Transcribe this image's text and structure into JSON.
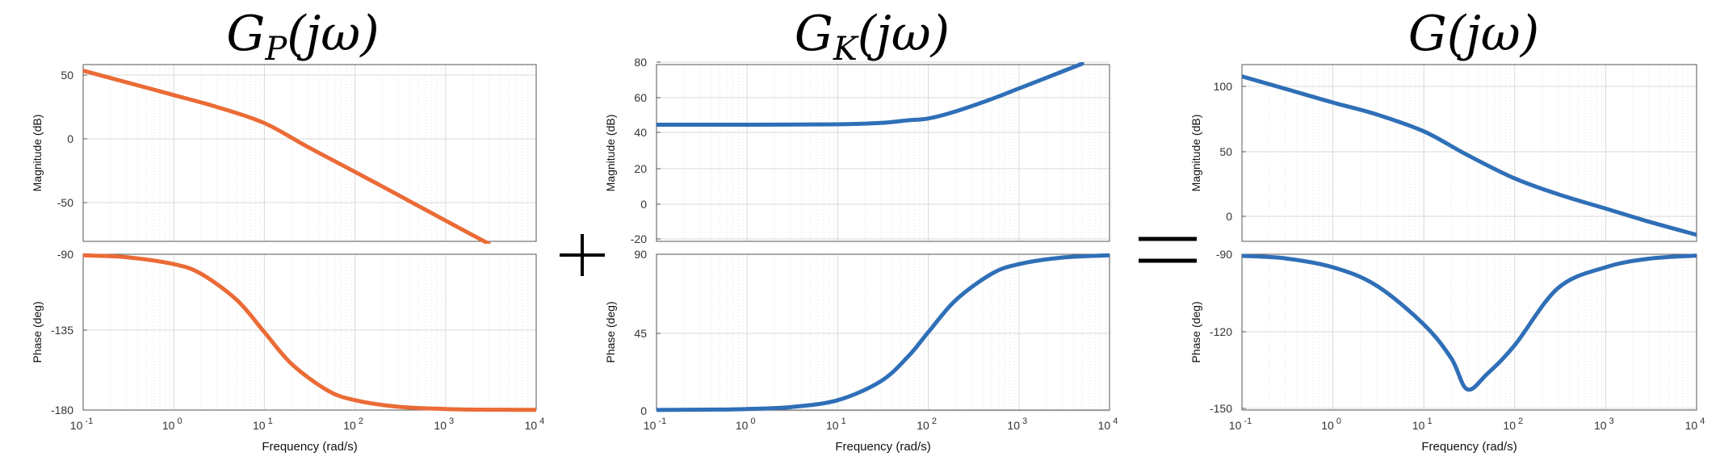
{
  "operators": {
    "plus": "+",
    "equals": "="
  },
  "colors": {
    "plant": "#EB6B36",
    "controller": "#2F6FB7",
    "open_loop": "#2F6FB7"
  },
  "chart_data": [
    {
      "type": "line",
      "title": {
        "base": "G",
        "sub": "P",
        "arg": "(jω)"
      },
      "xlabel": "Frequency  (rad/s)",
      "xscale": "log",
      "xlim": [
        0.1,
        10000
      ],
      "x_ticks": [
        {
          "base": "10",
          "exp": "-1",
          "value": 0.1
        },
        {
          "base": "10",
          "exp": "0",
          "value": 1
        },
        {
          "base": "10",
          "exp": "1",
          "value": 10
        },
        {
          "base": "10",
          "exp": "2",
          "value": 100
        },
        {
          "base": "10",
          "exp": "3",
          "value": 1000
        },
        {
          "base": "10",
          "exp": "4",
          "value": 10000
        }
      ],
      "magnitude": {
        "ylabel": "Magnitude (dB)",
        "ylim": [
          -80,
          65
        ],
        "yticks": [
          "50",
          "0",
          "-50"
        ],
        "series": [
          {
            "x": [
              0.1,
              0.3,
              1,
              3,
              10,
              30,
              100,
              300,
              1000,
              3000
            ],
            "values": [
              60,
              50.5,
              40,
              30.2,
              17,
              -2.5,
              -23,
              -42,
              -63,
              -82
            ]
          }
        ]
      },
      "phase": {
        "ylabel": "Phase (deg)",
        "ylim": [
          -180,
          -90
        ],
        "yticks": [
          "-90",
          "-135",
          "-180"
        ],
        "series": [
          {
            "x": [
              0.1,
              0.3,
              1,
              2,
              5,
              10,
              20,
              50,
              100,
              300,
              1000,
              3000,
              10000
            ],
            "values": [
              -90.6,
              -91.7,
              -95.7,
              -101.3,
              -116.6,
              -135,
              -153.4,
              -168.7,
              -174.3,
              -178.1,
              -179.4,
              -179.8,
              -179.9
            ]
          }
        ]
      },
      "grid": true
    },
    {
      "type": "line",
      "title": {
        "base": "G",
        "sub": "K",
        "arg": "(jω)"
      },
      "xlabel": "Frequency  (rad/s)",
      "xscale": "log",
      "xlim": [
        0.1,
        10000
      ],
      "x_ticks": [
        {
          "base": "10",
          "exp": "-1",
          "value": 0.1
        },
        {
          "base": "10",
          "exp": "0",
          "value": 1
        },
        {
          "base": "10",
          "exp": "1",
          "value": 10
        },
        {
          "base": "10",
          "exp": "2",
          "value": 100
        },
        {
          "base": "10",
          "exp": "3",
          "value": 1000
        },
        {
          "base": "10",
          "exp": "4",
          "value": 10000
        }
      ],
      "magnitude": {
        "ylabel": "Magnitude (dB)",
        "ylim": [
          -20,
          80
        ],
        "yticks": [
          "80",
          "60",
          "40",
          "20",
          "0",
          "-20"
        ],
        "series": [
          {
            "x": [
              0.1,
              1,
              10,
              30,
              60,
              100,
              200,
              500,
              1000,
              2000,
              5000
            ],
            "values": [
              46,
              46,
              46.2,
              47,
              48.5,
              49.5,
              53.5,
              60.5,
              66.5,
              72.5,
              80.5
            ]
          }
        ]
      },
      "phase": {
        "ylabel": "Phase (deg)",
        "ylim": [
          0,
          90
        ],
        "yticks": [
          "90",
          "45",
          "0"
        ],
        "series": [
          {
            "x": [
              0.1,
              0.5,
              1,
              3,
              10,
              30,
              60,
              100,
              200,
              500,
              1000,
              3000,
              10000
            ],
            "values": [
              0.06,
              0.3,
              0.6,
              1.7,
              5.7,
              16.7,
              31,
              45,
              63.4,
              78.7,
              84.3,
              88.1,
              89.4
            ]
          }
        ]
      },
      "grid": true
    },
    {
      "type": "line",
      "title": {
        "base": "G",
        "sub": "",
        "arg": "(jω)"
      },
      "xlabel": "Frequency  (rad/s)",
      "xscale": "log",
      "xlim": [
        0.1,
        10000
      ],
      "x_ticks": [
        {
          "base": "10",
          "exp": "-1",
          "value": 0.1
        },
        {
          "base": "10",
          "exp": "0",
          "value": 1
        },
        {
          "base": "10",
          "exp": "1",
          "value": 10
        },
        {
          "base": "10",
          "exp": "2",
          "value": 100
        },
        {
          "base": "10",
          "exp": "3",
          "value": 1000
        },
        {
          "base": "10",
          "exp": "4",
          "value": 10000
        }
      ],
      "magnitude": {
        "ylabel": "Magnitude (dB)",
        "ylim": [
          -20,
          115
        ],
        "yticks": [
          "100",
          "50",
          "0"
        ],
        "series": [
          {
            "x": [
              0.1,
              0.3,
              1,
              3,
              10,
              30,
              100,
              300,
              1000,
              3000,
              10000
            ],
            "values": [
              106,
              96.5,
              86,
              77,
              64,
              46,
              28,
              16,
              5,
              -5,
              -15
            ]
          }
        ]
      },
      "phase": {
        "ylabel": "Phase (deg)",
        "ylim": [
          -150,
          -90
        ],
        "yticks": [
          "-90",
          "-120",
          "-150"
        ],
        "series": [
          {
            "x": [
              0.1,
              0.3,
              1,
              3,
              10,
              20,
              30,
              50,
              100,
              300,
              1000,
              3000,
              10000
            ],
            "values": [
              -90.6,
              -91.6,
              -95,
              -102,
              -117,
              -130,
              -142,
              -136,
              -125,
              -103,
              -95,
              -91.7,
              -90.5
            ]
          }
        ]
      },
      "grid": true
    }
  ]
}
